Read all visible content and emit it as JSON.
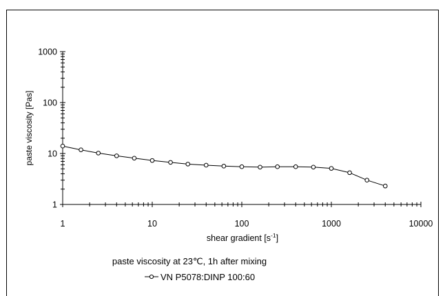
{
  "chart_data": {
    "type": "line",
    "title": "paste viscosity at 23℃, 1h after mixing",
    "xlabel": "shear gradient",
    "xlabel_unit_base": "[s",
    "xlabel_unit_exp": "-1",
    "xlabel_unit_close": "]",
    "ylabel": "paste viscosity  [Pas]",
    "xscale": "log",
    "yscale": "log",
    "xlim": [
      1,
      10000
    ],
    "ylim": [
      1,
      1000
    ],
    "x_ticks": [
      "1",
      "10",
      "100",
      "1000",
      "10000"
    ],
    "y_ticks": [
      "1",
      "10",
      "100",
      "1000"
    ],
    "grid": false,
    "legend_position": "bottom",
    "series": [
      {
        "name": "VN P5078:DINP  100:60",
        "marker": "open-circle",
        "color": "#000000",
        "x": [
          1,
          1.6,
          2.5,
          4,
          6.3,
          10,
          16,
          25,
          40,
          63,
          100,
          160,
          250,
          400,
          630,
          1000,
          1600,
          2500,
          4000
        ],
        "y": [
          14,
          11.8,
          10.2,
          9.0,
          8.1,
          7.3,
          6.7,
          6.2,
          5.9,
          5.65,
          5.5,
          5.4,
          5.5,
          5.5,
          5.4,
          5.1,
          4.2,
          3.0,
          2.3
        ]
      }
    ]
  }
}
